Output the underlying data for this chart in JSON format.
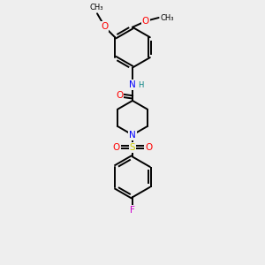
{
  "background_color": "#eeeeee",
  "bond_color": "#000000",
  "atom_colors": {
    "N": "#0000ff",
    "O": "#ff0000",
    "S": "#cccc00",
    "F": "#cc00cc",
    "H": "#008080",
    "C": "#000000"
  },
  "lw": 1.4,
  "fs": 7.5,
  "fs_small": 6.0,
  "xlim": [
    -2.5,
    2.5
  ],
  "ylim": [
    -5.5,
    5.5
  ]
}
